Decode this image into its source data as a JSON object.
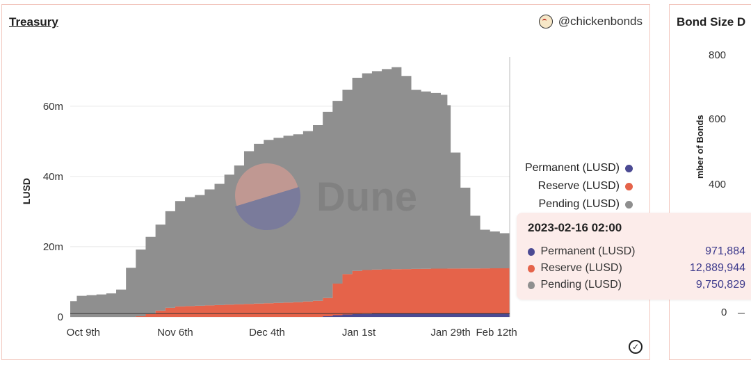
{
  "main_card": {
    "title": "Treasury",
    "owner": "@chickenbonds",
    "owner_icon": "chicken-avatar-icon",
    "watermark_text": "Dune"
  },
  "legend": [
    {
      "label": "Permanent (LUSD)",
      "color": "#4b4a93"
    },
    {
      "label": "Reserve (LUSD)",
      "color": "#e5634a"
    },
    {
      "label": "Pending (LUSD)",
      "color": "#8f8f8f"
    }
  ],
  "tooltip": {
    "title": "2023-02-16 02:00",
    "rows": [
      {
        "label": "Permanent (LUSD)",
        "value": "971,884",
        "color": "#4b4a93"
      },
      {
        "label": "Reserve (LUSD)",
        "value": "12,889,944",
        "color": "#e5634a"
      },
      {
        "label": "Pending (LUSD)",
        "value": "9,750,829",
        "color": "#8f8f8f"
      }
    ]
  },
  "side_card": {
    "title": "Bond Size D",
    "ylabel": "mber of Bonds",
    "ticks": [
      "800",
      "600",
      "400",
      "0"
    ]
  },
  "chart_data": {
    "type": "area",
    "stacked": true,
    "ylabel": "LUSD",
    "xlabel": "",
    "ylim": [
      0,
      74000000
    ],
    "yticks": [
      0,
      20000000,
      40000000,
      60000000
    ],
    "ytick_labels": [
      "0",
      "20m",
      "40m",
      "60m"
    ],
    "xticks": [
      "2022-10-09",
      "2022-11-06",
      "2022-12-04",
      "2023-01-01",
      "2023-01-29",
      "2023-02-12"
    ],
    "xtick_labels": [
      "Oct 9th",
      "Nov 6th",
      "Dec 4th",
      "Jan 1st",
      "Jan 29th",
      "Feb 12th"
    ],
    "x": [
      "2022-10-05",
      "2022-10-07",
      "2022-10-10",
      "2022-10-13",
      "2022-10-16",
      "2022-10-19",
      "2022-10-22",
      "2022-10-25",
      "2022-10-28",
      "2022-10-31",
      "2022-11-03",
      "2022-11-06",
      "2022-11-09",
      "2022-11-12",
      "2022-11-15",
      "2022-11-18",
      "2022-11-21",
      "2022-11-24",
      "2022-11-27",
      "2022-11-30",
      "2022-12-03",
      "2022-12-06",
      "2022-12-09",
      "2022-12-12",
      "2022-12-15",
      "2022-12-18",
      "2022-12-21",
      "2022-12-24",
      "2022-12-27",
      "2022-12-30",
      "2023-01-02",
      "2023-01-05",
      "2023-01-08",
      "2023-01-11",
      "2023-01-14",
      "2023-01-17",
      "2023-01-20",
      "2023-01-23",
      "2023-01-26",
      "2023-01-28",
      "2023-01-29",
      "2023-02-01",
      "2023-02-04",
      "2023-02-07",
      "2023-02-10",
      "2023-02-13",
      "2023-02-16"
    ],
    "series": [
      {
        "name": "Permanent (LUSD)",
        "color": "#4b4a93",
        "values": [
          0,
          0,
          0,
          0,
          0,
          0,
          0,
          0,
          0,
          0,
          0,
          0,
          0,
          0,
          0,
          0,
          0,
          0,
          0,
          0,
          0,
          0,
          0,
          0,
          0,
          0,
          200000,
          500000,
          700000,
          800000,
          850000,
          880000,
          900000,
          910000,
          920000,
          930000,
          940000,
          945000,
          950000,
          955000,
          958000,
          960000,
          963000,
          966000,
          968000,
          970000,
          971884
        ]
      },
      {
        "name": "Reserve (LUSD)",
        "color": "#e5634a",
        "values": [
          0,
          0,
          0,
          0,
          0,
          0,
          0,
          200000,
          800000,
          1800000,
          2600000,
          3000000,
          3100000,
          3200000,
          3300000,
          3400000,
          3500000,
          3600000,
          3700000,
          3800000,
          3900000,
          4000000,
          4100000,
          4200000,
          4400000,
          4600000,
          5200000,
          9000000,
          11500000,
          12300000,
          12500000,
          12600000,
          12650000,
          12700000,
          12700000,
          12750000,
          12750000,
          12800000,
          12800000,
          12820000,
          12830000,
          12840000,
          12850000,
          12860000,
          12870000,
          12880000,
          12889944
        ]
      },
      {
        "name": "Pending (LUSD)",
        "color": "#8f8f8f",
        "values": [
          4500000,
          6000000,
          6200000,
          6400000,
          6700000,
          7800000,
          14000000,
          19000000,
          22000000,
          24500000,
          27500000,
          30000000,
          31000000,
          31500000,
          33000000,
          34500000,
          37000000,
          39500000,
          43500000,
          45500000,
          46500000,
          47000000,
          47500000,
          47800000,
          48500000,
          50000000,
          53000000,
          52000000,
          52500000,
          55000000,
          56000000,
          56500000,
          57000000,
          57500000,
          55000000,
          51000000,
          50500000,
          50000000,
          49500000,
          46500000,
          33000000,
          23000000,
          15000000,
          11000000,
          10500000,
          10000000,
          9750829
        ]
      }
    ]
  }
}
